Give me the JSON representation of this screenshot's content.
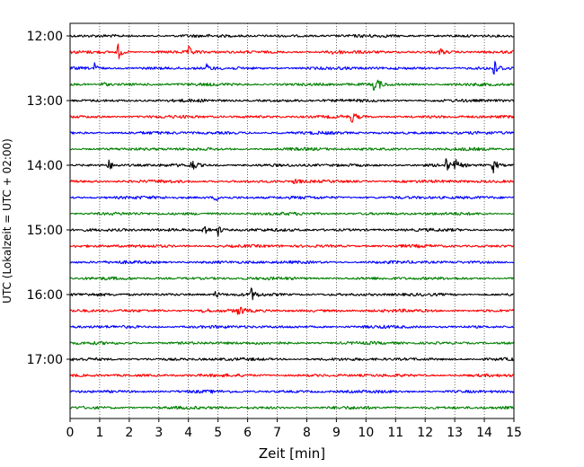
{
  "chart_data": {
    "type": "line",
    "title": "",
    "xlabel": "Zeit  [min]",
    "ylabel": "UTC (Lokalzeit = UTC + 02:00)",
    "xlim": [
      0,
      15
    ],
    "x_ticks": [
      "0",
      "1",
      "2",
      "3",
      "4",
      "5",
      "6",
      "7",
      "8",
      "9",
      "10",
      "11",
      "12",
      "13",
      "14",
      "15"
    ],
    "y_ticks": [
      "12:00",
      "13:00",
      "14:00",
      "15:00",
      "16:00",
      "17:00"
    ],
    "trace_start_hour": 12,
    "trace_interval_minutes": 15,
    "trace_count": 24,
    "trace_colors": [
      "#000000",
      "#ff0000",
      "#0000ff",
      "#008000"
    ],
    "grid": "vertical dotted",
    "events": [
      {
        "trace": 1,
        "minute": 1.6,
        "amplitude": 1.0
      },
      {
        "trace": 1,
        "minute": 4.0,
        "amplitude": 0.5
      },
      {
        "trace": 1,
        "minute": 8.9,
        "amplitude": 0.4
      },
      {
        "trace": 1,
        "minute": 12.5,
        "amplitude": 0.4
      },
      {
        "trace": 2,
        "minute": 0.8,
        "amplitude": 0.6
      },
      {
        "trace": 2,
        "minute": 4.6,
        "amplitude": 0.4
      },
      {
        "trace": 2,
        "minute": 14.3,
        "amplitude": 1.0
      },
      {
        "trace": 3,
        "minute": 10.3,
        "amplitude": 1.2
      },
      {
        "trace": 3,
        "minute": 1.1,
        "amplitude": 0.3
      },
      {
        "trace": 5,
        "minute": 9.5,
        "amplitude": 0.7
      },
      {
        "trace": 8,
        "minute": 1.3,
        "amplitude": 0.5
      },
      {
        "trace": 8,
        "minute": 4.1,
        "amplitude": 0.7
      },
      {
        "trace": 8,
        "minute": 12.7,
        "amplitude": 0.6
      },
      {
        "trace": 8,
        "minute": 13.0,
        "amplitude": 0.6
      },
      {
        "trace": 8,
        "minute": 14.3,
        "amplitude": 0.8
      },
      {
        "trace": 9,
        "minute": 7.6,
        "amplitude": 0.4
      },
      {
        "trace": 10,
        "minute": 4.9,
        "amplitude": 0.4
      },
      {
        "trace": 12,
        "minute": 4.5,
        "amplitude": 0.9
      },
      {
        "trace": 12,
        "minute": 5.0,
        "amplitude": 0.6
      },
      {
        "trace": 16,
        "minute": 6.1,
        "amplitude": 0.7
      },
      {
        "trace": 16,
        "minute": 4.9,
        "amplitude": 0.4
      },
      {
        "trace": 17,
        "minute": 5.7,
        "amplitude": 0.6
      },
      {
        "trace": 17,
        "minute": 4.5,
        "amplitude": 0.4
      }
    ]
  }
}
